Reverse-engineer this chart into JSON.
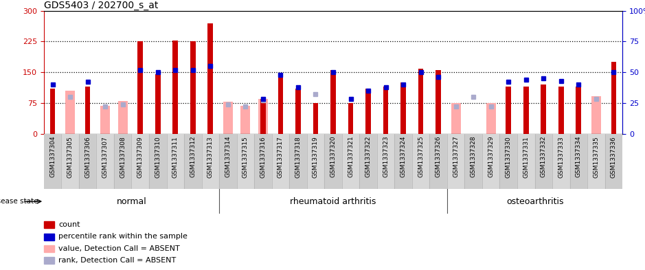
{
  "title": "GDS5403 / 202700_s_at",
  "samples": [
    "GSM1337304",
    "GSM1337305",
    "GSM1337306",
    "GSM1337307",
    "GSM1337308",
    "GSM1337309",
    "GSM1337310",
    "GSM1337311",
    "GSM1337312",
    "GSM1337313",
    "GSM1337314",
    "GSM1337315",
    "GSM1337316",
    "GSM1337317",
    "GSM1337318",
    "GSM1337319",
    "GSM1337320",
    "GSM1337321",
    "GSM1337322",
    "GSM1337323",
    "GSM1337324",
    "GSM1337325",
    "GSM1337326",
    "GSM1337327",
    "GSM1337328",
    "GSM1337329",
    "GSM1337330",
    "GSM1337331",
    "GSM1337332",
    "GSM1337333",
    "GSM1337334",
    "GSM1337335",
    "GSM1337336"
  ],
  "red_bars": [
    110,
    0,
    115,
    0,
    0,
    225,
    145,
    228,
    226,
    270,
    0,
    0,
    85,
    145,
    110,
    75,
    155,
    75,
    110,
    115,
    125,
    158,
    155,
    0,
    0,
    0,
    115,
    115,
    120,
    115,
    115,
    0,
    175
  ],
  "pink_bars": [
    0,
    105,
    0,
    68,
    80,
    0,
    0,
    0,
    0,
    0,
    78,
    68,
    85,
    0,
    0,
    0,
    0,
    0,
    0,
    0,
    0,
    0,
    0,
    75,
    0,
    75,
    0,
    0,
    0,
    0,
    0,
    92,
    0
  ],
  "blue_pct": [
    40,
    0,
    42,
    0,
    0,
    52,
    50,
    52,
    52,
    55,
    0,
    0,
    28,
    48,
    38,
    0,
    50,
    28,
    35,
    38,
    40,
    50,
    46,
    0,
    0,
    0,
    42,
    44,
    45,
    43,
    40,
    0,
    50
  ],
  "lb_pct": [
    0,
    30,
    0,
    22,
    24,
    0,
    0,
    0,
    0,
    0,
    24,
    22,
    27,
    0,
    0,
    32,
    0,
    0,
    0,
    0,
    0,
    0,
    0,
    22,
    30,
    22,
    0,
    0,
    0,
    0,
    0,
    28,
    0
  ],
  "groups": [
    {
      "label": "normal",
      "start": 0,
      "end": 10
    },
    {
      "label": "rheumatoid arthritis",
      "start": 10,
      "end": 23
    },
    {
      "label": "osteoarthritis",
      "start": 23,
      "end": 33
    }
  ],
  "left_ylim": [
    0,
    300
  ],
  "right_ylim": [
    0,
    100
  ],
  "left_yticks": [
    0,
    75,
    150,
    225,
    300
  ],
  "right_yticks": [
    0,
    25,
    50,
    75,
    100
  ],
  "dotted_lines": [
    75,
    150,
    225
  ],
  "red_color": "#cc0000",
  "pink_color": "#ffaaaa",
  "blue_color": "#0000cc",
  "lightblue_color": "#aaaacc",
  "group_bg": "#88ee88",
  "tick_bg": "#cccccc",
  "title_fs": 10,
  "tick_fs": 6.5,
  "group_fs": 9,
  "legend_fs": 8,
  "ytick_fs": 8
}
